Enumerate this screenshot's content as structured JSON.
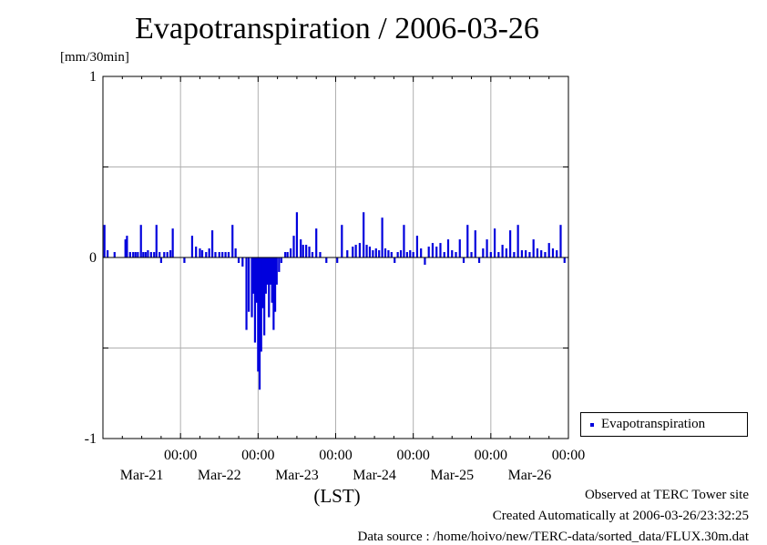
{
  "title": "Evapotranspiration / 2006-03-26",
  "footer": {
    "observed": "Observed at TERC Tower site",
    "created": "Created Automatically at 2006-03-26/23:32:25",
    "source": "Data source : /home/hoivo/new/TERC-data/sorted_data/FLUX.30m.dat"
  },
  "colors": {
    "series": "#0000dd",
    "grid": "#b0b0b0"
  },
  "chart_data": {
    "type": "bar",
    "ylabel": "[mm/30min]",
    "xlabel": "(LST)",
    "ylim": [
      -1,
      1
    ],
    "y_ticks": [
      "1",
      "0",
      "-1"
    ],
    "y_tick_values": [
      1,
      0,
      -1
    ],
    "y_grid_values": [
      1,
      0.5,
      0,
      -0.5,
      -1
    ],
    "xlim_day": [
      20.0,
      26.0
    ],
    "x_ticks": [
      {
        "time": "00:00",
        "date": "Mar-21"
      },
      {
        "time": "00:00",
        "date": "Mar-22"
      },
      {
        "time": "00:00",
        "date": "Mar-23"
      },
      {
        "time": "00:00",
        "date": "Mar-24"
      },
      {
        "time": "00:00",
        "date": "Mar-25"
      },
      {
        "time": "00:00",
        "date": "Mar-26"
      }
    ],
    "x_tick_days": [
      21,
      22,
      23,
      24,
      25,
      26
    ],
    "grid": true,
    "legend": {
      "position": "outside-right",
      "entries": [
        "Evapotranspiration"
      ]
    },
    "series": [
      {
        "name": "Evapotranspiration",
        "x_day": [
          20.02,
          20.06,
          20.15,
          20.29,
          20.31,
          20.35,
          20.39,
          20.42,
          20.45,
          20.49,
          20.52,
          20.55,
          20.58,
          20.62,
          20.66,
          20.69,
          20.73,
          20.75,
          20.79,
          20.83,
          20.87,
          20.9,
          21.05,
          21.15,
          21.2,
          21.25,
          21.28,
          21.33,
          21.37,
          21.41,
          21.45,
          21.5,
          21.54,
          21.58,
          21.62,
          21.67,
          21.71,
          21.75,
          21.8,
          21.85,
          21.88,
          21.92,
          21.94,
          21.96,
          21.98,
          22.0,
          22.02,
          22.04,
          22.06,
          22.08,
          22.1,
          22.12,
          22.14,
          22.16,
          22.18,
          22.2,
          22.22,
          22.24,
          22.27,
          22.3,
          22.35,
          22.38,
          22.42,
          22.46,
          22.5,
          22.55,
          22.58,
          22.62,
          22.66,
          22.7,
          22.75,
          22.8,
          22.88,
          23.02,
          23.08,
          23.15,
          23.22,
          23.26,
          23.31,
          23.36,
          23.4,
          23.44,
          23.48,
          23.52,
          23.56,
          23.6,
          23.64,
          23.68,
          23.72,
          23.76,
          23.8,
          23.84,
          23.88,
          23.92,
          23.96,
          24.0,
          24.05,
          24.1,
          24.15,
          24.2,
          24.25,
          24.3,
          24.35,
          24.4,
          24.45,
          24.5,
          24.55,
          24.6,
          24.65,
          24.7,
          24.75,
          24.8,
          24.85,
          24.9,
          24.95,
          25.0,
          25.05,
          25.1,
          25.15,
          25.2,
          25.25,
          25.3,
          25.35,
          25.4,
          25.45,
          25.5,
          25.55,
          25.6,
          25.65,
          25.7,
          25.75,
          25.8,
          25.85,
          25.9,
          25.95
        ],
        "values": [
          0.18,
          0.04,
          0.03,
          0.1,
          0.12,
          0.03,
          0.03,
          0.03,
          0.03,
          0.18,
          0.03,
          0.03,
          0.04,
          0.03,
          0.03,
          0.18,
          0.03,
          -0.03,
          0.03,
          0.03,
          0.04,
          0.16,
          -0.03,
          0.12,
          0.06,
          0.05,
          0.04,
          0.03,
          0.05,
          0.15,
          0.03,
          0.03,
          0.03,
          0.03,
          0.03,
          0.18,
          0.05,
          -0.03,
          -0.05,
          -0.4,
          -0.3,
          -0.33,
          -0.2,
          -0.47,
          -0.25,
          -0.63,
          -0.73,
          -0.52,
          -0.28,
          -0.43,
          -0.2,
          -0.15,
          -0.33,
          -0.15,
          -0.25,
          -0.4,
          -0.3,
          -0.15,
          -0.08,
          -0.03,
          0.03,
          0.03,
          0.05,
          0.12,
          0.25,
          0.1,
          0.07,
          0.07,
          0.06,
          0.03,
          0.16,
          0.03,
          -0.03,
          -0.03,
          0.18,
          0.04,
          0.06,
          0.07,
          0.08,
          0.25,
          0.07,
          0.06,
          0.04,
          0.05,
          0.04,
          0.22,
          0.05,
          0.04,
          0.03,
          -0.03,
          0.03,
          0.04,
          0.18,
          0.03,
          0.04,
          0.03,
          0.12,
          0.05,
          -0.04,
          0.06,
          0.08,
          0.06,
          0.08,
          0.03,
          0.1,
          0.04,
          0.03,
          0.1,
          -0.03,
          0.18,
          0.03,
          0.15,
          -0.03,
          0.05,
          0.1,
          0.03,
          0.16,
          0.03,
          0.07,
          0.05,
          0.15,
          0.03,
          0.18,
          0.04,
          0.04,
          0.03,
          0.1,
          0.05,
          0.04,
          0.03,
          0.08,
          0.05,
          0.04,
          0.18,
          -0.03
        ]
      }
    ]
  }
}
